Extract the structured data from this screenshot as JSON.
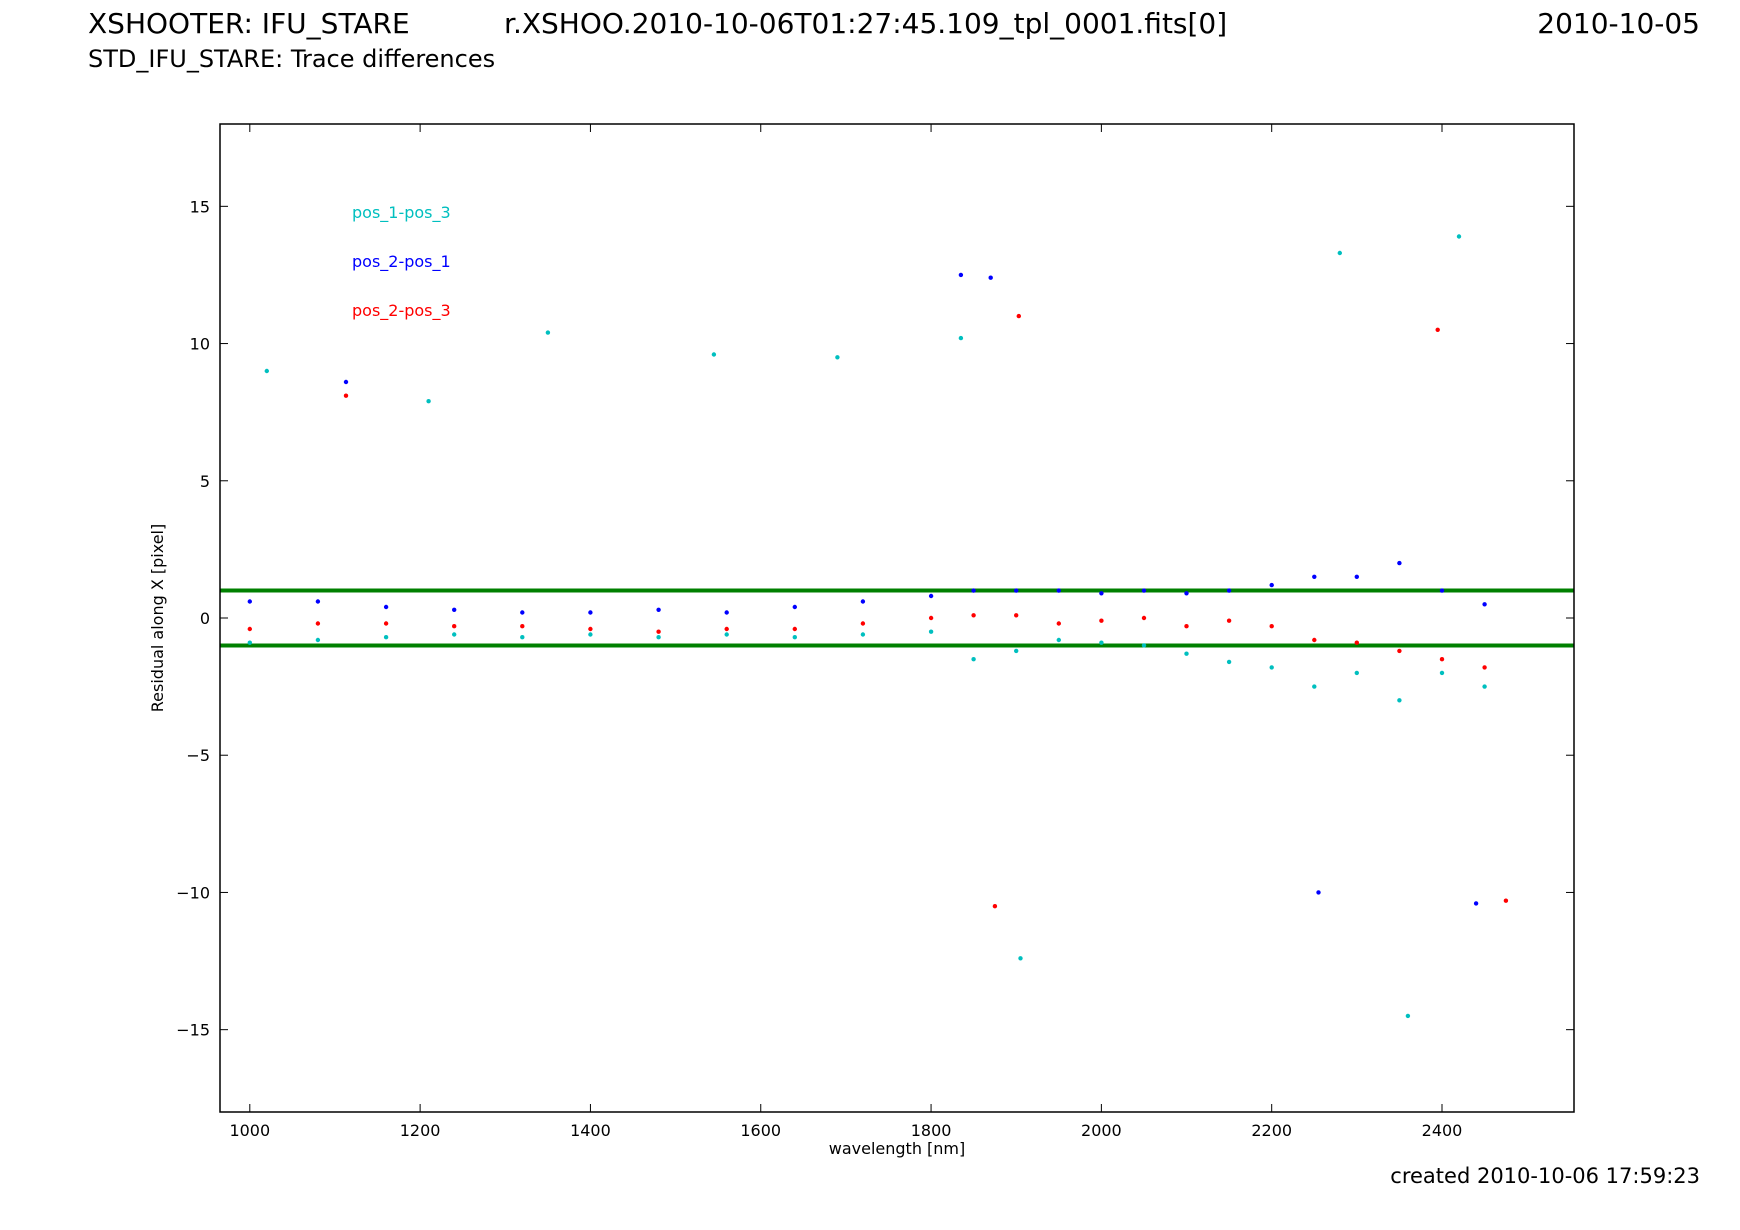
{
  "header": {
    "instrument": "XSHOOTER: IFU_STARE",
    "filename": "r.XSHOO.2010-10-06T01:27:45.109_tpl_0001.fits[0]",
    "obs_date": "2010-10-05",
    "subtitle": "STD_IFU_STARE: Trace differences"
  },
  "footer": {
    "created": "created 2010-10-06 17:59:23"
  },
  "chart_data": {
    "type": "scatter",
    "title": "",
    "xlabel": "wavelength [nm]",
    "ylabel": "Residual along X [pixel]",
    "xlim": [
      965,
      2555
    ],
    "ylim": [
      -18,
      18
    ],
    "xticks": [
      1000,
      1200,
      1400,
      1600,
      1800,
      2000,
      2200,
      2400
    ],
    "yticks": [
      15,
      10,
      5,
      0,
      -5,
      -10,
      -15
    ],
    "ytick_labels": [
      "15",
      "10",
      "5",
      "0",
      "−5",
      "−10",
      "−15"
    ],
    "grid": false,
    "legend_position": "top-left",
    "reference_lines": [
      {
        "y": 1,
        "color": "#008000"
      },
      {
        "y": -1,
        "color": "#008000"
      }
    ],
    "series": [
      {
        "name": "pos_1-pos_3",
        "color": "#00bfbf",
        "x": [
          1000,
          1080,
          1160,
          1240,
          1320,
          1400,
          1480,
          1560,
          1640,
          1720,
          1800,
          1850,
          1900,
          1950,
          2000,
          2050,
          2100,
          2150,
          2200,
          2250,
          2300,
          2350,
          2400,
          2450,
          1020,
          1210,
          1350,
          1545,
          1690,
          1835,
          1905,
          2280,
          2420,
          2360
        ],
        "y": [
          -0.9,
          -0.8,
          -0.7,
          -0.6,
          -0.7,
          -0.6,
          -0.7,
          -0.6,
          -0.7,
          -0.6,
          -0.5,
          -1.5,
          -1.2,
          -0.8,
          -0.9,
          -1.0,
          -1.3,
          -1.6,
          -1.8,
          -2.5,
          -2.0,
          -3.0,
          -2.0,
          -2.5,
          9.0,
          7.9,
          10.4,
          9.6,
          9.5,
          10.2,
          -12.4,
          13.3,
          13.9,
          -14.5
        ]
      },
      {
        "name": "pos_2-pos_1",
        "color": "#0000ff",
        "x": [
          1000,
          1080,
          1160,
          1240,
          1320,
          1400,
          1480,
          1560,
          1640,
          1720,
          1800,
          1850,
          1900,
          1950,
          2000,
          2050,
          2100,
          2150,
          2200,
          2250,
          2300,
          2350,
          2400,
          2450,
          1113,
          1835,
          1870,
          2255,
          2440
        ],
        "y": [
          0.6,
          0.6,
          0.4,
          0.3,
          0.2,
          0.2,
          0.3,
          0.2,
          0.4,
          0.6,
          0.8,
          1.0,
          1.0,
          1.0,
          0.9,
          1.0,
          0.9,
          1.0,
          1.2,
          1.5,
          1.5,
          2.0,
          1.0,
          0.5,
          8.6,
          12.5,
          12.4,
          -10.0,
          -10.4
        ]
      },
      {
        "name": "pos_2-pos_3",
        "color": "#ff0000",
        "x": [
          1000,
          1080,
          1160,
          1240,
          1320,
          1400,
          1480,
          1560,
          1640,
          1720,
          1800,
          1850,
          1900,
          1950,
          2000,
          2050,
          2100,
          2150,
          2200,
          2250,
          2300,
          2350,
          2400,
          2450,
          1113,
          1903,
          1875,
          2395,
          2475
        ],
        "y": [
          -0.4,
          -0.2,
          -0.2,
          -0.3,
          -0.3,
          -0.4,
          -0.5,
          -0.4,
          -0.4,
          -0.2,
          0.0,
          0.1,
          0.1,
          -0.2,
          -0.1,
          0.0,
          -0.3,
          -0.1,
          -0.3,
          -0.8,
          -0.9,
          -1.2,
          -1.5,
          -1.8,
          8.1,
          11.0,
          -10.5,
          10.5,
          -10.3
        ]
      }
    ]
  }
}
